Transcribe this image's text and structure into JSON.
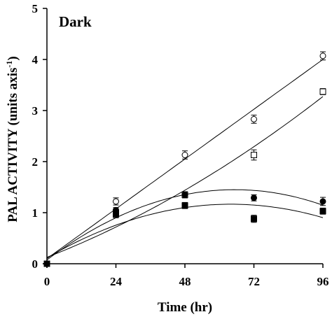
{
  "chart_data": {
    "type": "scatter",
    "title": "",
    "panel_label": "Dark",
    "xlabel": "Time (hr)",
    "ylabel": "PAL ACTIVITY (units axis",
    "ylabel_superscript": "-1",
    "ylabel_close": ")",
    "xlim": [
      0,
      96
    ],
    "ylim": [
      0,
      5
    ],
    "xticks": [
      0,
      24,
      48,
      72,
      96
    ],
    "yticks": [
      0,
      1,
      2,
      3,
      4,
      5
    ],
    "grid": false,
    "legend": "none",
    "series": [
      {
        "marker": "open-circle",
        "x": [
          0,
          24,
          48,
          72,
          96
        ],
        "y": [
          0.0,
          1.22,
          2.13,
          2.83,
          4.07
        ],
        "err": [
          0.0,
          0.07,
          0.08,
          0.08,
          0.08
        ],
        "fit": "linear"
      },
      {
        "marker": "open-square",
        "x": [
          0,
          24,
          48,
          72,
          96
        ],
        "y": [
          0.0,
          1.0,
          1.35,
          2.13,
          3.37
        ],
        "err": [
          0.0,
          0.05,
          0.06,
          0.1,
          0.06
        ],
        "fit": "quadratic"
      },
      {
        "marker": "filled-circle",
        "x": [
          0,
          24,
          48,
          72,
          96
        ],
        "y": [
          0.0,
          1.05,
          1.35,
          1.29,
          1.22
        ],
        "err": [
          0.0,
          0.05,
          0.06,
          0.06,
          0.08
        ],
        "fit": "quadratic"
      },
      {
        "marker": "filled-square",
        "x": [
          0,
          24,
          48,
          72,
          96
        ],
        "y": [
          0.0,
          0.97,
          1.14,
          0.88,
          1.03
        ],
        "err": [
          0.0,
          0.07,
          0.06,
          0.07,
          0.06
        ],
        "fit": "quadratic"
      }
    ]
  }
}
